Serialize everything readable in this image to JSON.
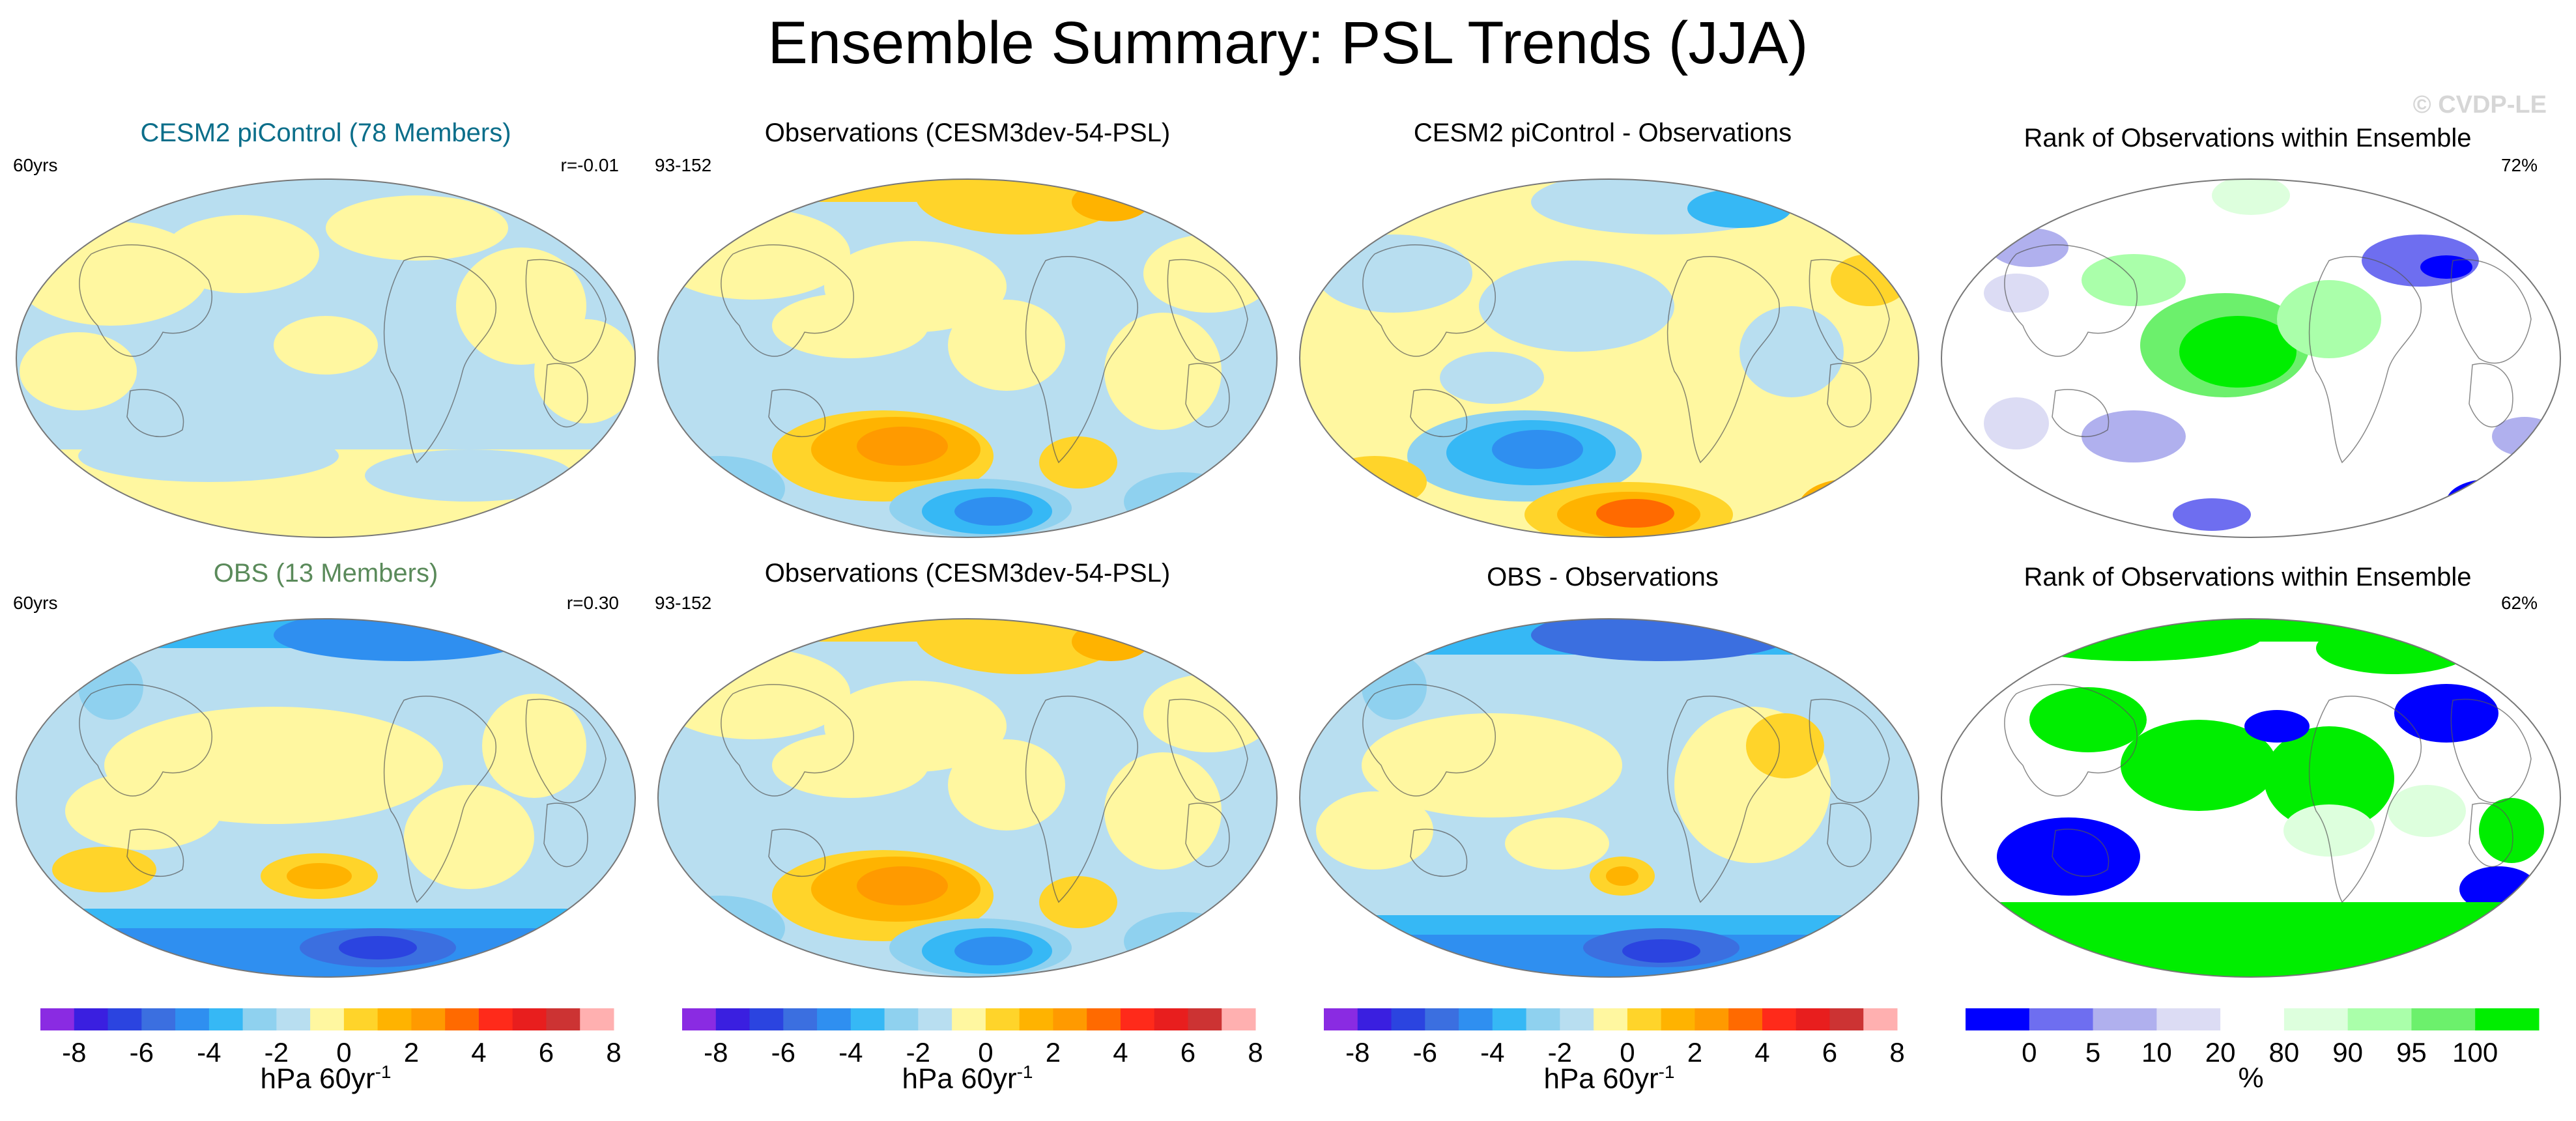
{
  "figure_title": "Ensemble Summary: PSL Trends (JJA)",
  "watermark": "© CVDP-LE",
  "diverging_colorbar": {
    "colors": [
      "#8a2be2",
      "#3a1fe0",
      "#2b44e0",
      "#3b6fe0",
      "#2f8ff0",
      "#36b8f5",
      "#8fd1ef",
      "#b8def0",
      "#fff7a0",
      "#ffd42a",
      "#ffb300",
      "#ff9a00",
      "#ff6a00",
      "#ff2a1a",
      "#e81e1e",
      "#cc3333",
      "#ffb0b0"
    ],
    "tick_labels": [
      "-8",
      "-6",
      "-4",
      "-2",
      "0",
      "2",
      "4",
      "6",
      "8"
    ],
    "unit_label": "hPa 60yr",
    "unit_exp": "-1"
  },
  "rank_colorbar": {
    "colors": [
      "#0000ff",
      "#6e6ef0",
      "#b0b0ee",
      "#dcdcf4",
      "#ffffff",
      "#ddffdd",
      "#aaffaa",
      "#6cf06c",
      "#00ee00"
    ],
    "tick_labels": [
      "0",
      "5",
      "10",
      "20",
      "80",
      "90",
      "95",
      "100"
    ],
    "unit_label": "%"
  },
  "panels": [
    {
      "title": "CESM2 piControl (78 Members)",
      "title_color": "#0b6e8a",
      "left_label": "60yrs",
      "right_label": "r=-0.01"
    },
    {
      "title": "Observations (CESM3dev-54-PSL)",
      "title_color": "#000000",
      "left_label": "93-152",
      "right_label": ""
    },
    {
      "title": "CESM2 piControl - Observations",
      "title_color": "#000000",
      "left_label": "",
      "right_label": ""
    },
    {
      "title": "Rank of Observations within Ensemble",
      "title_color": "#000000",
      "left_label": "",
      "right_label": "72%"
    },
    {
      "title": "OBS (13 Members)",
      "title_color": "#5a8a5a",
      "left_label": "60yrs",
      "right_label": "r=0.30"
    },
    {
      "title": "Observations (CESM3dev-54-PSL)",
      "title_color": "#000000",
      "left_label": "93-152",
      "right_label": ""
    },
    {
      "title": "OBS - Observations",
      "title_color": "#000000",
      "left_label": "",
      "right_label": ""
    },
    {
      "title": "Rank of Observations within Ensemble",
      "title_color": "#000000",
      "left_label": "",
      "right_label": "62%"
    }
  ],
  "chart_data": {
    "type": "heatmap",
    "title": "Ensemble Summary: PSL Trends (JJA)",
    "map_projection": "Robinson (Pacific-centered)",
    "trend_units": "hPa 60yr-1",
    "trend_contour_levels": [
      -8,
      -7,
      -6,
      -5,
      -4,
      -3,
      -2,
      -1,
      0,
      1,
      2,
      3,
      4,
      5,
      6,
      7,
      8
    ],
    "rank_levels_percent": [
      0,
      5,
      10,
      20,
      80,
      90,
      95,
      100
    ],
    "rank_summary_percent": {
      "CESM2 piControl": 72,
      "OBS": 62
    },
    "pattern_correlation": {
      "CESM2 piControl": -0.01,
      "OBS": 0.3
    },
    "ensemble_members": {
      "CESM2 piControl": 78,
      "OBS": 13
    }
  }
}
